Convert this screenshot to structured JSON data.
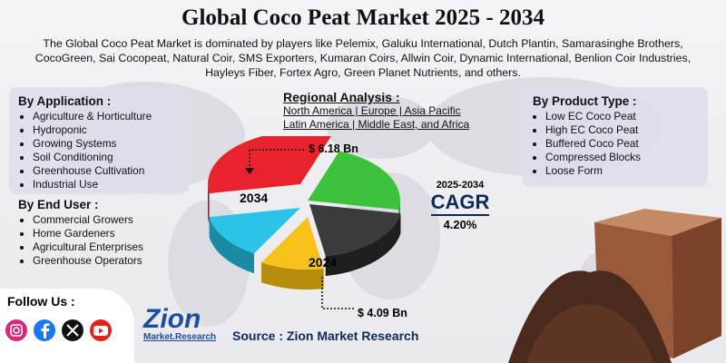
{
  "header": {
    "title": "Global Coco Peat Market 2025 - 2034",
    "description": "The Global Coco Peat Market is dominated by players like Pelemix, Galuku International, Dutch Plantin, Samarasinghe Brothers, CocoGreen, Sai Cocopeat, Natural Coir, SMS Exporters, Kumaran Coirs, Allwin Coir, Dynamic International, Benlion Coir Industries, Hayleys Fiber, Fortex Agro, Green Planet Nutrients, and others."
  },
  "application": {
    "title": "By Application :",
    "items": [
      "Agriculture & Horticulture",
      "Hydroponic",
      "Growing Systems",
      "Soil Conditioning",
      "Greenhouse Cultivation",
      "Industrial Use"
    ]
  },
  "end_user": {
    "title": "By End User :",
    "items": [
      "Commercial Growers",
      "Home Gardeners",
      "Agricultural Enterprises",
      "Greenhouse Operators"
    ]
  },
  "regional": {
    "title": "Regional Analysis :",
    "lines": [
      "North America | Europe | Asia Pacific",
      "Latin America | Middle East, and Africa"
    ]
  },
  "pie": {
    "value_2034": "$ 6.18 Bn",
    "year_2034": "2034",
    "year_2024": "2024",
    "value_2024": "$ 4.09 Bn"
  },
  "product_type": {
    "title": "By Product Type :",
    "items": [
      "Low EC Coco Peat",
      "High EC Coco Peat",
      "Buffered Coco Peat",
      "Compressed Blocks",
      "Loose Form"
    ]
  },
  "cagr": {
    "period": "2025-2034",
    "label": "CAGR",
    "value": "4.20%"
  },
  "footer": {
    "follow": "Follow Us :",
    "logo_main": "Zion",
    "logo_sub": "Market.Research",
    "source": "Source : Zion Market Research"
  }
}
